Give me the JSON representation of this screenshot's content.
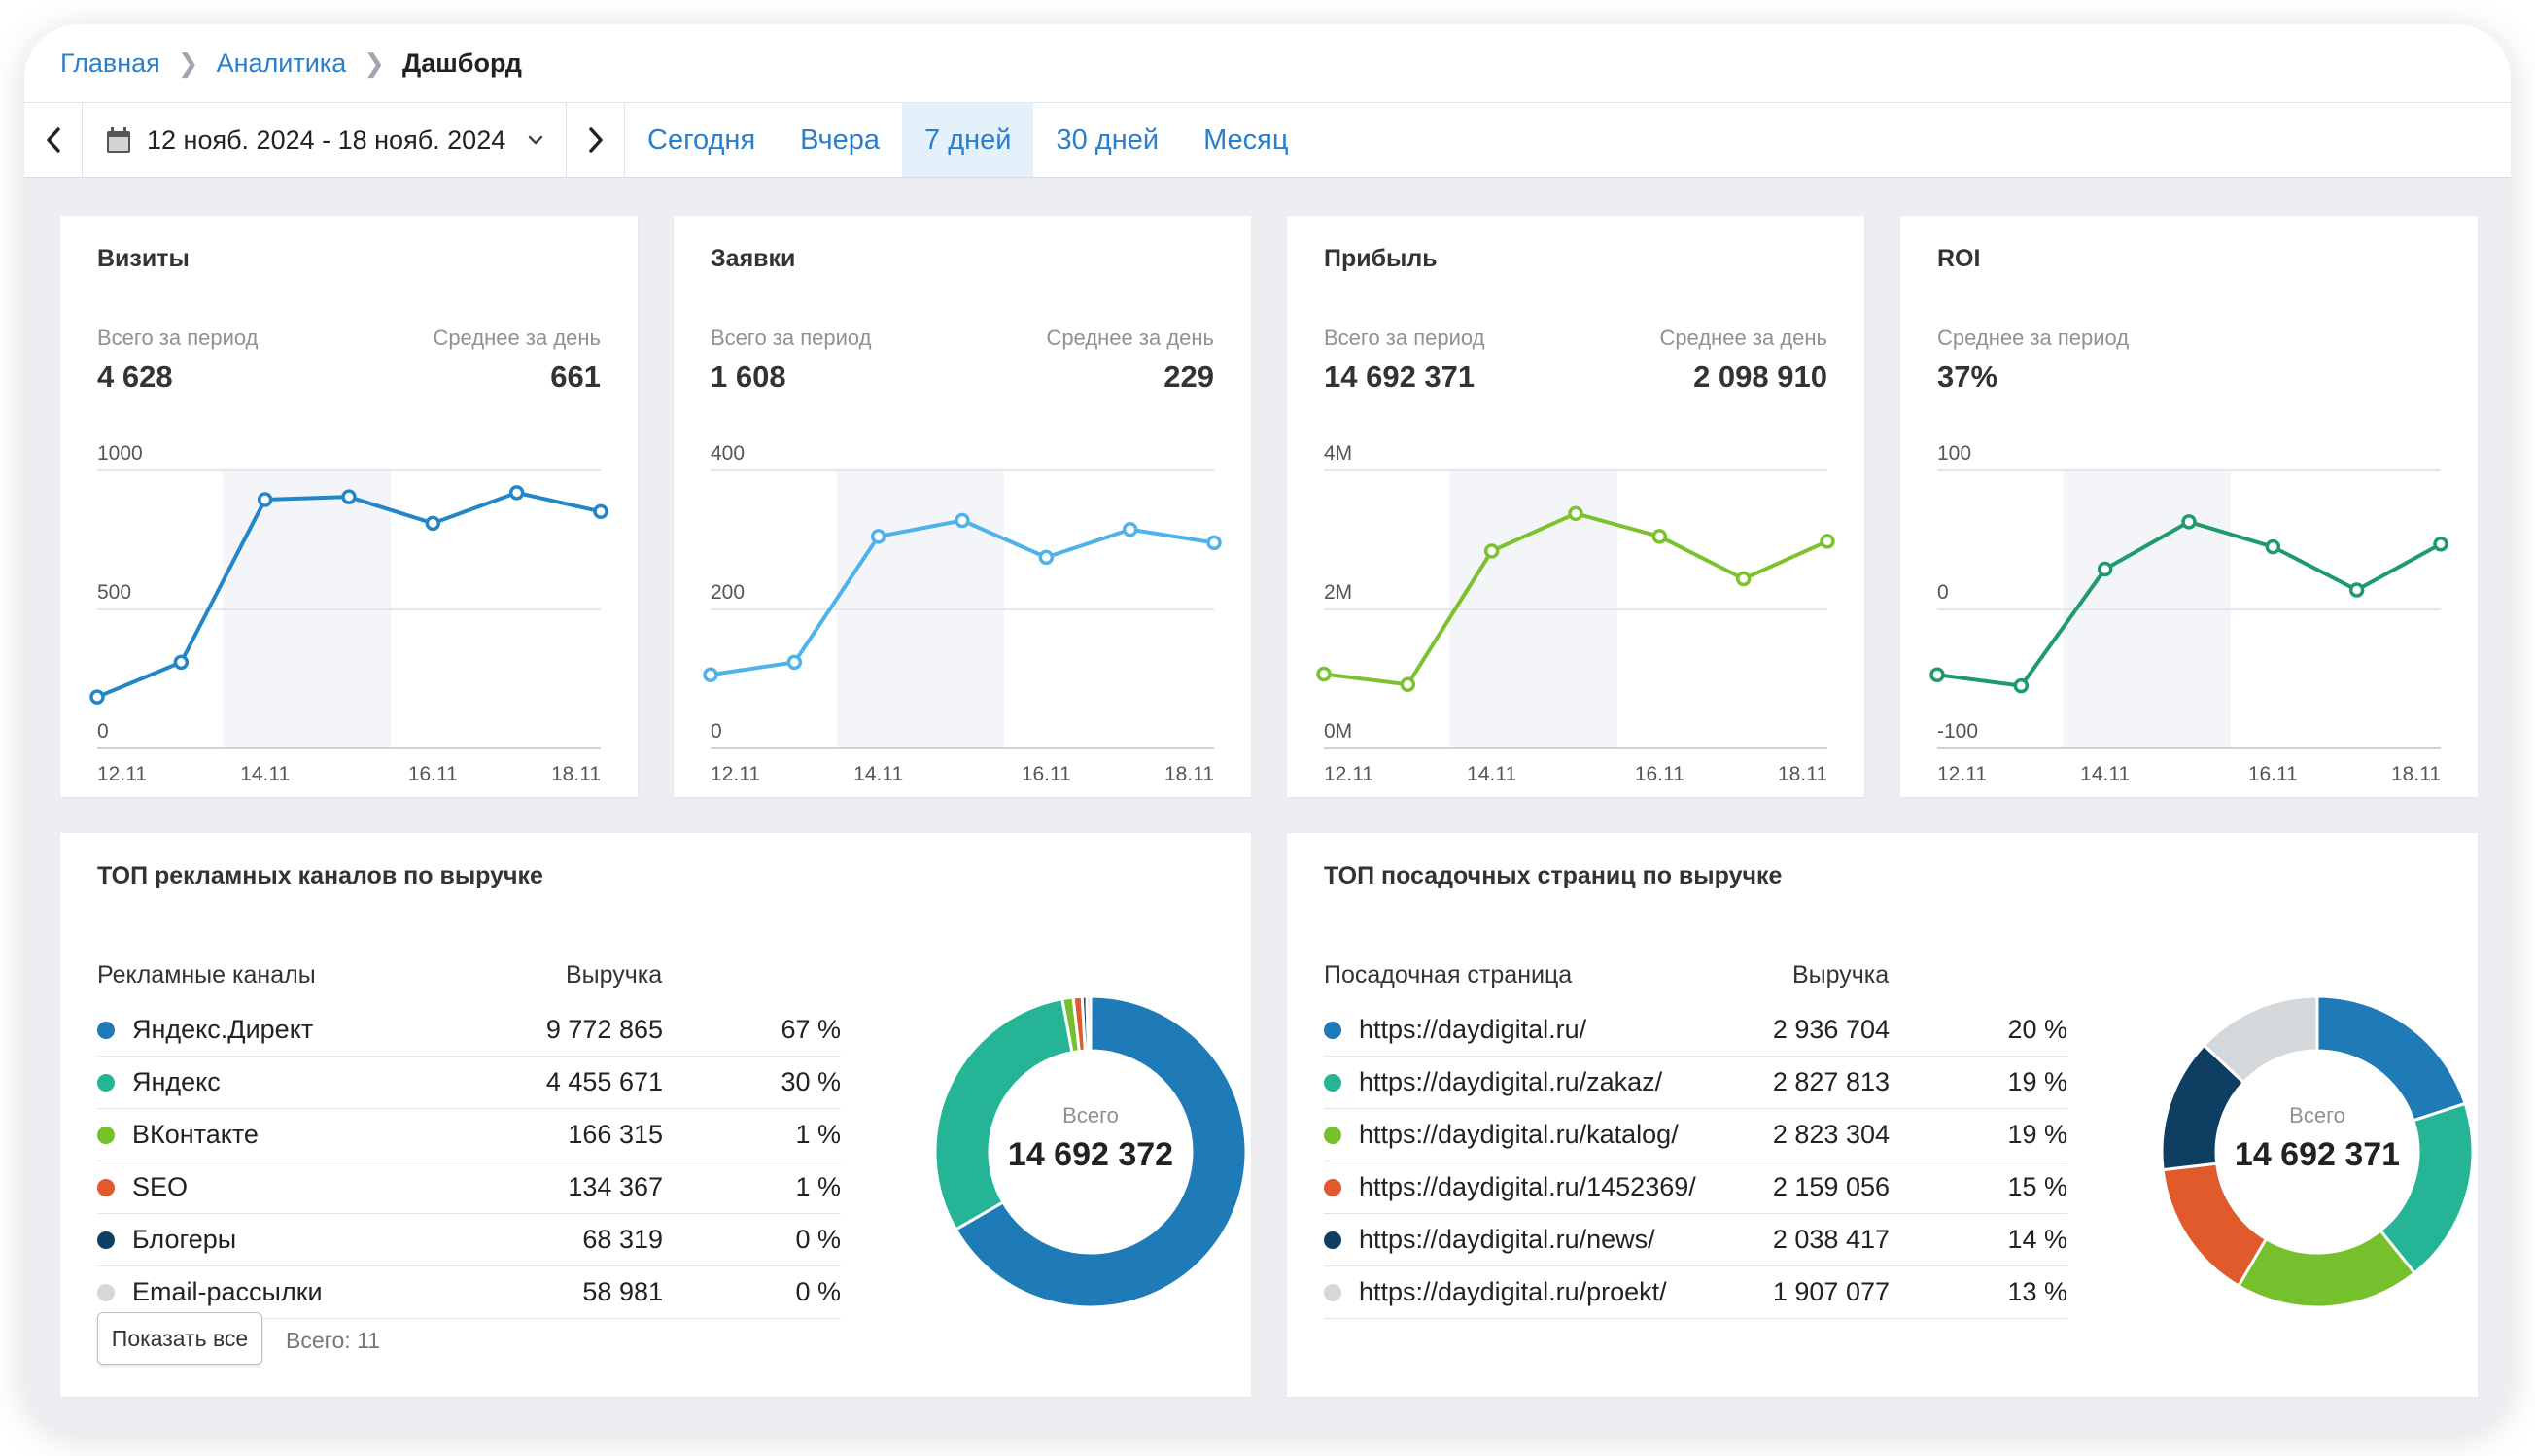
{
  "breadcrumb": {
    "home": "Главная",
    "analytics": "Аналитика",
    "current": "Дашборд"
  },
  "toolbar": {
    "date_range": "12 нояб. 2024 - 18 нояб. 2024",
    "periods": [
      "Сегодня",
      "Вчера",
      "7 дней",
      "30 дней",
      "Месяц"
    ],
    "active_period": "7 дней"
  },
  "cards": [
    {
      "title": "Визиты",
      "total_label": "Всего за период",
      "total": "4 628",
      "avg_label": "Среднее за день",
      "avg": "661",
      "color": "#2386c8",
      "chart_data": {
        "type": "line",
        "x": [
          "12.11",
          "13.11",
          "14.11",
          "15.11",
          "16.11",
          "17.11",
          "18.11"
        ],
        "values": [
          185,
          310,
          895,
          905,
          810,
          920,
          852
        ],
        "yticks": [
          "1000",
          "500",
          "0"
        ],
        "ylim": [
          0,
          1000
        ],
        "xticks": [
          "12.11",
          "14.11",
          "16.11",
          "18.11"
        ]
      }
    },
    {
      "title": "Заявки",
      "total_label": "Всего за период",
      "total": "1 608",
      "avg_label": "Среднее за день",
      "avg": "229",
      "color": "#4fb3ea",
      "chart_data": {
        "type": "line",
        "x": [
          "12.11",
          "13.11",
          "14.11",
          "15.11",
          "16.11",
          "17.11",
          "18.11"
        ],
        "values": [
          106,
          124,
          305,
          328,
          275,
          315,
          296
        ],
        "yticks": [
          "400",
          "200",
          "0"
        ],
        "ylim": [
          0,
          400
        ],
        "xticks": [
          "12.11",
          "14.11",
          "16.11",
          "18.11"
        ]
      }
    },
    {
      "title": "Прибыль",
      "total_label": "Всего за период",
      "total": "14 692 371",
      "avg_label": "Среднее за день",
      "avg": "2 098 910",
      "color": "#7cc22f",
      "chart_data": {
        "type": "line",
        "x": [
          "12.11",
          "13.11",
          "14.11",
          "15.11",
          "16.11",
          "17.11",
          "18.11"
        ],
        "values": [
          1070000,
          920000,
          2840000,
          3380000,
          3050000,
          2440000,
          2980000
        ],
        "yticks": [
          "4M",
          "2M",
          "0M"
        ],
        "ylim": [
          0,
          4000000
        ],
        "xticks": [
          "12.11",
          "14.11",
          "16.11",
          "18.11"
        ]
      }
    },
    {
      "title": "ROI",
      "total_label": "Среднее за период",
      "total": "37%",
      "color": "#1f9a6b",
      "chart_data": {
        "type": "line",
        "x": [
          "12.11",
          "13.11",
          "14.11",
          "15.11",
          "16.11",
          "17.11",
          "18.11"
        ],
        "values": [
          -47,
          -55,
          29,
          63,
          45,
          14,
          47
        ],
        "yticks": [
          "100",
          "0",
          "-100"
        ],
        "ylim": [
          -100,
          100
        ],
        "xticks": [
          "12.11",
          "14.11",
          "16.11",
          "18.11"
        ]
      }
    }
  ],
  "channels": {
    "title": "ТОП рекламных каналов по выручке",
    "col_name": "Рекламные каналы",
    "col_revenue": "Выручка",
    "rows": [
      {
        "name": "Яндекс.Директ",
        "revenue": "9 772 865",
        "pct": "67 %",
        "color": "#1f7bb8"
      },
      {
        "name": "Яндекс",
        "revenue": "4 455 671",
        "pct": "30 %",
        "color": "#25b596"
      },
      {
        "name": "ВКонтакте",
        "revenue": "166 315",
        "pct": "1 %",
        "color": "#76c02e"
      },
      {
        "name": "SEO",
        "revenue": "134 367",
        "pct": "1 %",
        "color": "#e05a2b"
      },
      {
        "name": "Блогеры",
        "revenue": "68 319",
        "pct": "0 %",
        "color": "#0e3f63"
      },
      {
        "name": "Email-рассылки",
        "revenue": "58 981",
        "pct": "0 %",
        "color": "#d5d8db"
      }
    ],
    "show_all": "Показать все",
    "total_count": "Всего: 11",
    "donut_label": "Всего",
    "donut_total": "14 692 372",
    "chart_data": {
      "type": "pie",
      "categories": [
        "Яндекс.Директ",
        "Яндекс",
        "ВКонтакте",
        "SEO",
        "Блогеры",
        "Email-рассылки"
      ],
      "values": [
        9772865,
        4455671,
        166315,
        134367,
        68319,
        58981
      ]
    }
  },
  "landing": {
    "title": "ТОП посадочных страниц по выручке",
    "col_name": "Посадочная страница",
    "col_revenue": "Выручка",
    "rows": [
      {
        "name": "https://daydigital.ru/",
        "revenue": "2 936 704",
        "pct": "20 %",
        "color": "#1f7bb8"
      },
      {
        "name": "https://daydigital.ru/zakaz/",
        "revenue": "2 827 813",
        "pct": "19 %",
        "color": "#25b596"
      },
      {
        "name": "https://daydigital.ru/katalog/",
        "revenue": "2 823 304",
        "pct": "19 %",
        "color": "#76c02e"
      },
      {
        "name": "https://daydigital.ru/1452369/",
        "revenue": "2 159 056",
        "pct": "15 %",
        "color": "#e05a2b"
      },
      {
        "name": "https://daydigital.ru/news/",
        "revenue": "2 038 417",
        "pct": "14 %",
        "color": "#0e3f63"
      },
      {
        "name": "https://daydigital.ru/proekt/",
        "revenue": "1 907 077",
        "pct": "13 %",
        "color": "#d5d8db"
      }
    ],
    "donut_label": "Всего",
    "donut_total": "14 692 371",
    "chart_data": {
      "type": "pie",
      "categories": [
        "https://daydigital.ru/",
        "https://daydigital.ru/zakaz/",
        "https://daydigital.ru/katalog/",
        "https://daydigital.ru/1452369/",
        "https://daydigital.ru/news/",
        "https://daydigital.ru/proekt/"
      ],
      "values": [
        2936704,
        2827813,
        2823304,
        2159056,
        2038417,
        1907077
      ]
    }
  }
}
